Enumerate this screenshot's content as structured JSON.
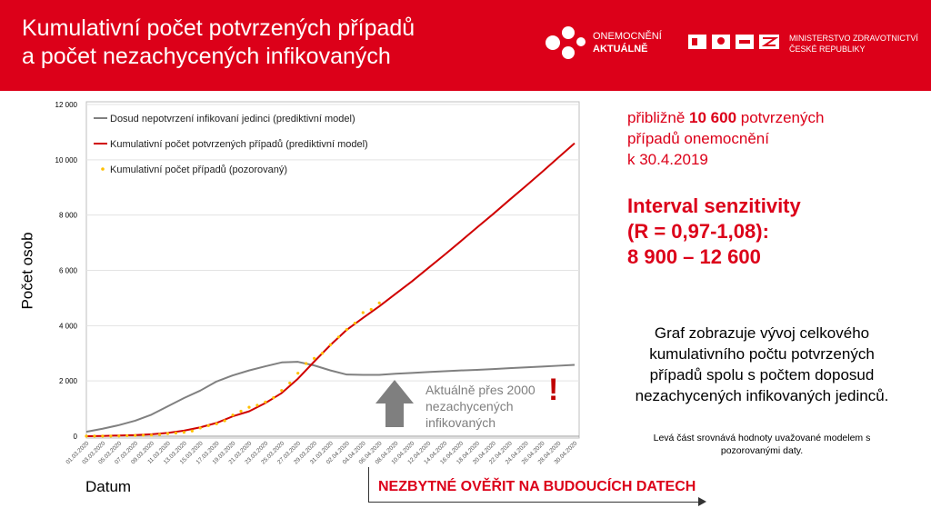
{
  "header": {
    "title_line1": "Kumulativní počet potvrzených případů",
    "title_line2": "a počet nezachycených infikovaných",
    "logo1_line1": "ONEMOCNĚNÍ",
    "logo1_line2": "AKTUÁLNĚ",
    "logo2_line1": "MINISTERSTVO ZDRAVOTNICTVÍ",
    "logo2_line2": "ČESKÉ REPUBLIKY"
  },
  "right": {
    "estimate_pre": "přibližně ",
    "estimate_value": "10 600",
    "estimate_post": " potvrzených",
    "estimate_line2": "případů onemocnění",
    "estimate_line3": "k 30.4.2019",
    "interval_line1": "Interval senzitivity",
    "interval_line2": "(R = 0,97-1,08):",
    "interval_line3": "8 900 – 12 600",
    "description": "Graf zobrazuje vývoj celkového kumulativního počtu potvrzených případů spolu s počtem doposud nezachycených infikovaných jedinců.",
    "note": "Levá část srovnává hodnoty uvažované modelem s pozorovanými daty."
  },
  "annotation": {
    "text": "Aktuálně přes 2000 nezachycených infikovaných",
    "exclamation": "!"
  },
  "bottom": {
    "cta": "NEZBYTNÉ OVĚŘIT NA BUDOUCÍCH DATECH"
  },
  "colors": {
    "brand": "#dc0019",
    "gray_series": "#808080",
    "red_series": "#d00000",
    "observed": "#ffc000"
  },
  "chart_data": {
    "type": "line",
    "xlabel": "Datum",
    "ylabel": "Počet osob",
    "ylim": [
      0,
      12000
    ],
    "yticks": [
      "0",
      "2 000",
      "4 000",
      "6 000",
      "8 000",
      "10 000",
      "12 000"
    ],
    "xticks": [
      "01.03.2020",
      "03.03.2020",
      "05.03.2020",
      "07.03.2020",
      "09.03.2020",
      "11.03.2020",
      "13.03.2020",
      "15.03.2020",
      "17.03.2020",
      "19.03.2020",
      "21.03.2020",
      "23.03.2020",
      "25.03.2020",
      "27.03.2020",
      "29.03.2020",
      "31.03.2020",
      "02.04.2020",
      "04.04.2020",
      "06.04.2020",
      "08.04.2020",
      "10.04.2020",
      "12.04.2020",
      "14.04.2020",
      "16.04.2020",
      "18.04.2020",
      "20.04.2020",
      "22.04.2020",
      "24.04.2020",
      "26.04.2020",
      "28.04.2020",
      "30.04.2020"
    ],
    "grid": true,
    "legend": "top-left",
    "series": [
      {
        "name": "Dosud nepotvrzení infikovaní jedinci (prediktivní model)",
        "type": "line",
        "step_days": 2,
        "values": [
          160,
          270,
          400,
          560,
          780,
          1080,
          1380,
          1650,
          1980,
          2200,
          2380,
          2530,
          2670,
          2690,
          2560,
          2380,
          2230,
          2220,
          2220,
          2260,
          2290,
          2320,
          2350,
          2380,
          2400,
          2430,
          2460,
          2490,
          2520,
          2550,
          2580
        ]
      },
      {
        "name": "Kumulativní počet potvrzených případů (prediktivní model)",
        "type": "line",
        "step_days": 2,
        "values": [
          0,
          10,
          25,
          40,
          70,
          120,
          200,
          320,
          480,
          720,
          900,
          1200,
          1560,
          2080,
          2700,
          3300,
          3850,
          4280,
          4700,
          5150,
          5600,
          6080,
          6560,
          7050,
          7550,
          8040,
          8550,
          9050,
          9560,
          10080,
          10600
        ]
      },
      {
        "name": "Kumulativní počet případů (pozorovaný)",
        "type": "scatter",
        "step_days": 1,
        "values": [
          3,
          3,
          5,
          5,
          8,
          19,
          26,
          32,
          38,
          63,
          94,
          116,
          141,
          189,
          298,
          383,
          450,
          560,
          765,
          904,
          1047,
          1120,
          1236,
          1394,
          1654,
          1925,
          2279,
          2631,
          2817,
          3001,
          3308,
          3589,
          3858,
          4091,
          4472,
          4587,
          4822
        ]
      }
    ]
  }
}
